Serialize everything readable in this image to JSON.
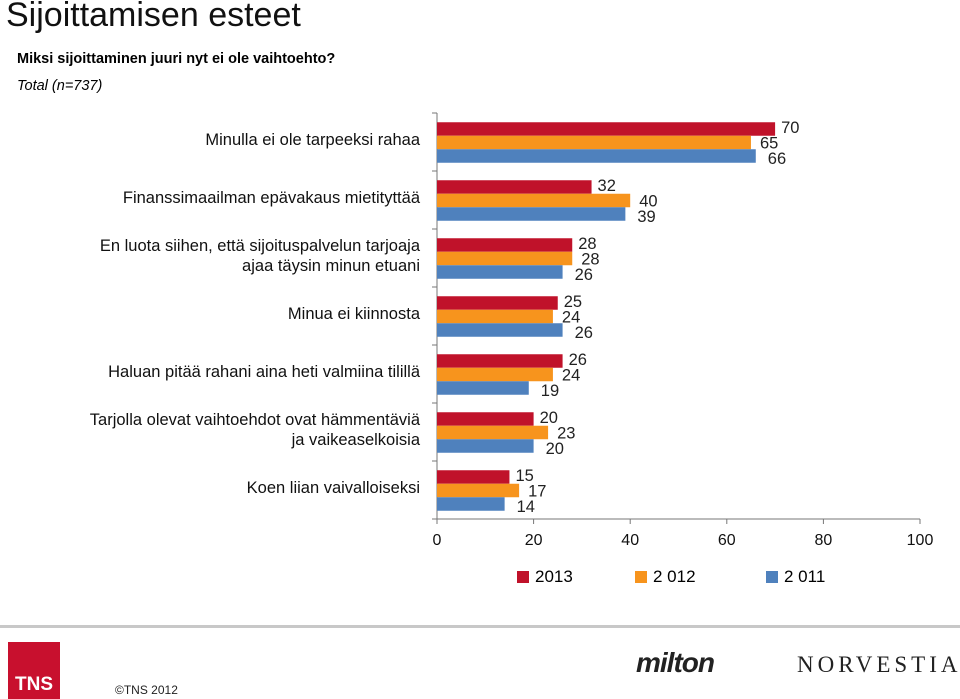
{
  "header": {
    "title": "Sijoittamisen esteet",
    "subtitle": "Miksi sijoittaminen juuri nyt ei ole vaihtoehto?",
    "sample": "Total (n=737)"
  },
  "chart_data": {
    "type": "bar",
    "orientation": "horizontal",
    "categories": [
      "Minulla ei ole tarpeeksi rahaa",
      "Finanssimaailman epävakaus mietityttää",
      "En luota siihen, että sijoituspalvelun tarjoaja ajaa täysin minun etuani",
      "Minua ei kiinnosta",
      "Haluan pitää rahani aina heti valmiina tilillä",
      "Tarjolla olevat vaihtoehdot ovat hämmentäviä ja vaikeaselkoisia",
      "Koen liian vaivalloiseksi"
    ],
    "category_lines": [
      [
        "Minulla ei ole tarpeeksi rahaa"
      ],
      [
        "Finanssimaailman epävakaus mietityttää"
      ],
      [
        "En luota siihen, että sijoituspalvelun tarjoaja",
        "ajaa täysin minun etuani"
      ],
      [
        "Minua ei kiinnosta"
      ],
      [
        "Haluan pitää rahani aina heti valmiina tilillä"
      ],
      [
        "Tarjolla olevat vaihtoehdot ovat hämmentäviä",
        "ja vaikeaselkoisia"
      ],
      [
        "Koen liian vaivalloiseksi"
      ]
    ],
    "series": [
      {
        "name": "2013",
        "color": "#c0122a",
        "values": [
          70,
          32,
          28,
          25,
          26,
          20,
          15
        ]
      },
      {
        "name": "2 012",
        "color": "#f7941d",
        "values": [
          65,
          40,
          28,
          24,
          24,
          23,
          17
        ]
      },
      {
        "name": "2 011",
        "color": "#4f81bd",
        "values": [
          66,
          39,
          26,
          26,
          19,
          20,
          14
        ]
      }
    ],
    "xlim": [
      0,
      100
    ],
    "xticks": [
      "0",
      "20",
      "40",
      "60",
      "80",
      "100"
    ],
    "legend_position": "bottom",
    "grid": false
  },
  "footer": {
    "tns_logo_text": "TNS",
    "copyright": "©TNS 2012",
    "logo_milton": "milton",
    "logo_norvestia": "NORVESTIA"
  }
}
